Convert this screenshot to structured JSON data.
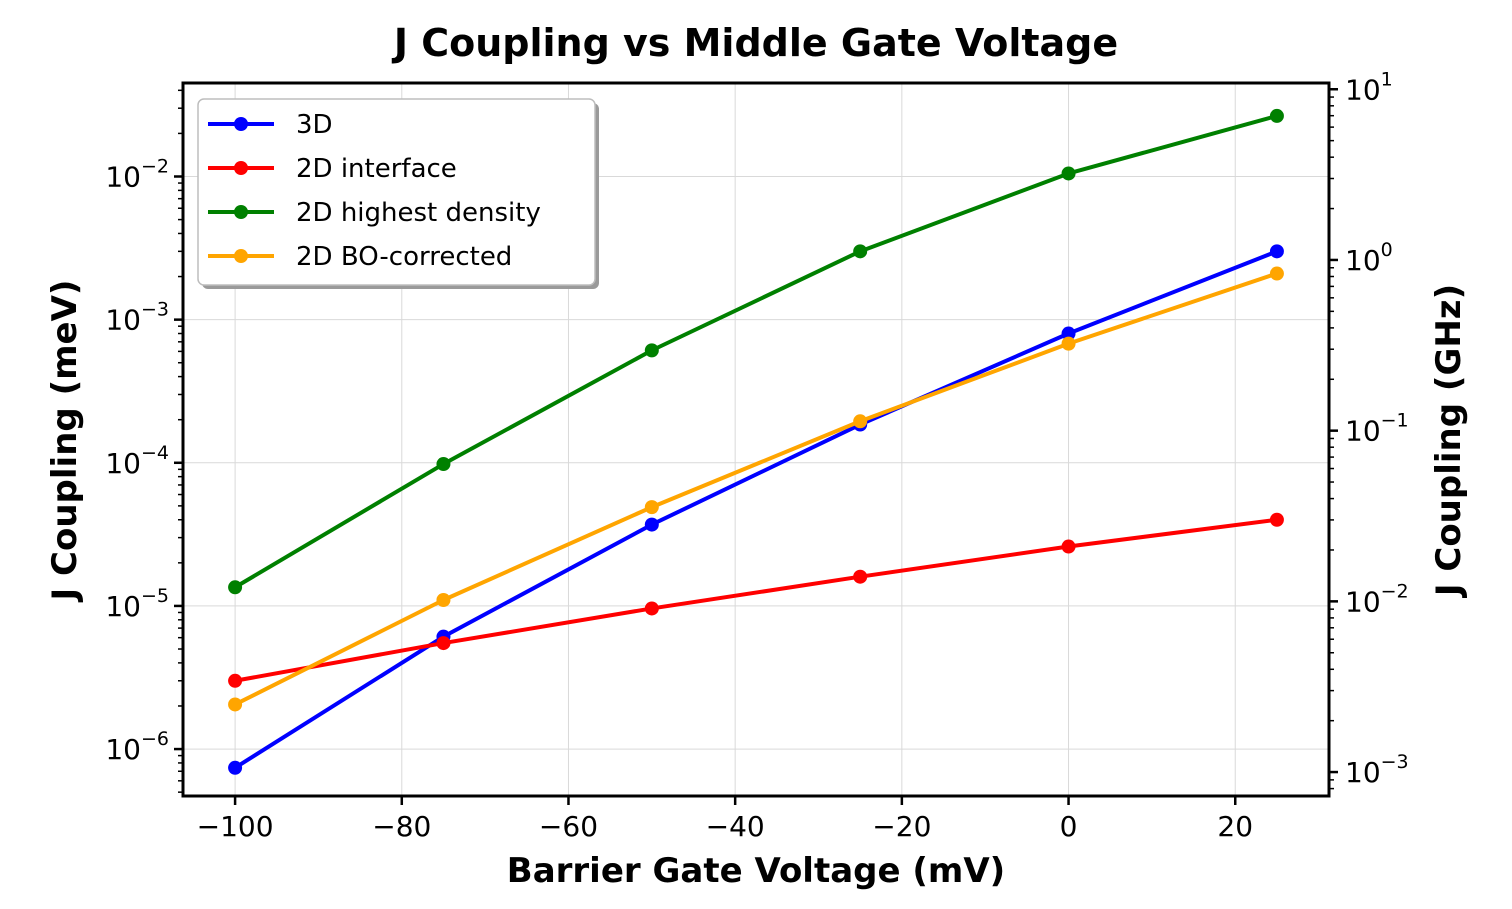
{
  "chart_data": {
    "type": "line",
    "title": "J Coupling vs Middle Gate Voltage",
    "xlabel": "Barrier Gate Voltage (mV)",
    "ylabel": "J Coupling (meV)",
    "ylabel_right": "J Coupling (GHz)",
    "yscale": "log",
    "xlim": [
      -106.25,
      31.25
    ],
    "ylim": [
      4.7e-07,
      0.045
    ],
    "ylim_right": [
      0.000724,
      10.88
    ],
    "grid": true,
    "legend_position": "top-left",
    "x_ticks": [
      -100,
      -80,
      -60,
      -40,
      -20,
      0,
      20
    ],
    "x_tick_labels": [
      "−100",
      "−80",
      "−60",
      "−40",
      "−20",
      "0",
      "20"
    ],
    "y_ticks": [
      {
        "value": 1e-06,
        "base": "10",
        "exp": "−6"
      },
      {
        "value": 1e-05,
        "base": "10",
        "exp": "−5"
      },
      {
        "value": 0.0001,
        "base": "10",
        "exp": "−4"
      },
      {
        "value": 0.001,
        "base": "10",
        "exp": "−3"
      },
      {
        "value": 0.01,
        "base": "10",
        "exp": "−2"
      }
    ],
    "y_ticks_right": [
      {
        "value": 0.001,
        "base": "10",
        "exp": "−3"
      },
      {
        "value": 0.01,
        "base": "10",
        "exp": "−2"
      },
      {
        "value": 0.1,
        "base": "10",
        "exp": "−1"
      },
      {
        "value": 1,
        "base": "10",
        "exp": "0"
      },
      {
        "value": 10,
        "base": "10",
        "exp": "1"
      }
    ],
    "x": [
      -100,
      -75,
      -50,
      -25,
      0,
      25
    ],
    "series": [
      {
        "name": "3D",
        "color": "#0000ff",
        "values": [
          7.4e-07,
          6.1e-06,
          3.7e-05,
          0.000185,
          0.0008,
          0.003
        ]
      },
      {
        "name": "2D interface",
        "color": "#ff0000",
        "values": [
          3e-06,
          5.5e-06,
          9.6e-06,
          1.6e-05,
          2.6e-05,
          4e-05
        ]
      },
      {
        "name": "2D highest density",
        "color": "#008000",
        "values": [
          1.35e-05,
          9.8e-05,
          0.00061,
          0.003,
          0.0105,
          0.0265
        ]
      },
      {
        "name": "2D BO-corrected",
        "color": "#ffa500",
        "values": [
          2.05e-06,
          1.1e-05,
          4.9e-05,
          0.000195,
          0.00068,
          0.0021
        ]
      }
    ]
  }
}
